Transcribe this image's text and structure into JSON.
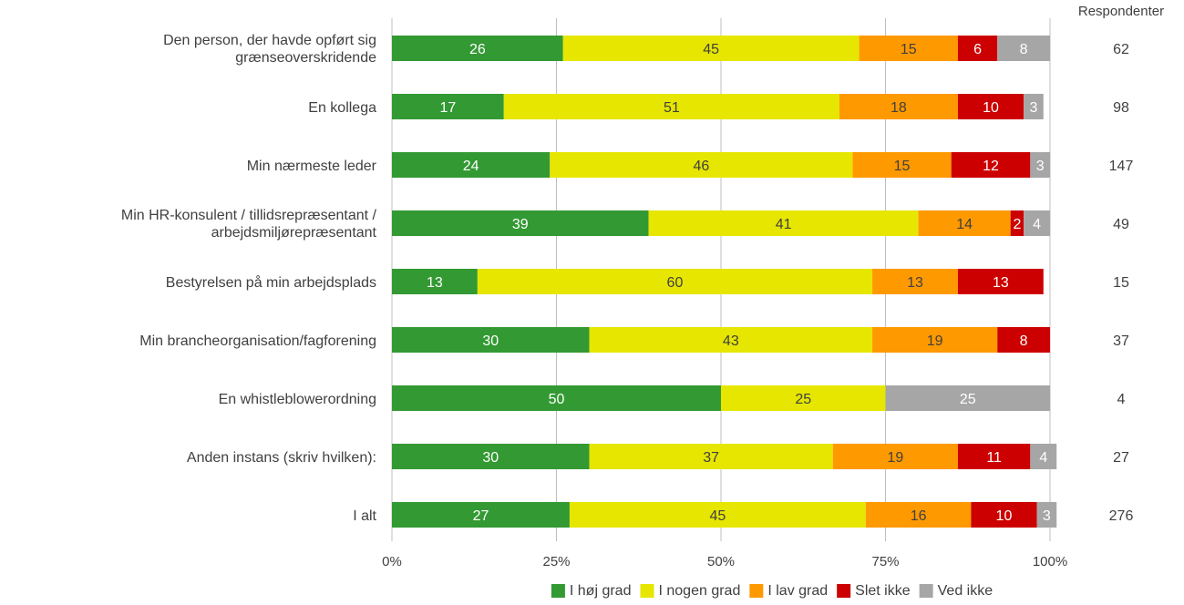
{
  "chart_data": {
    "type": "bar",
    "orientation": "horizontal",
    "stacked": "percent",
    "title": "",
    "xlabel": "",
    "ylabel": "",
    "xlim": [
      0,
      100
    ],
    "x_ticks": [
      "0%",
      "25%",
      "50%",
      "75%",
      "100%"
    ],
    "grid": true,
    "legend_position": "bottom",
    "categories": [
      [
        "Den person, der havde opført sig",
        "grænseoverskridende"
      ],
      [
        "En kollega"
      ],
      [
        "Min nærmeste leder"
      ],
      [
        "Min HR-konsulent / tillidsrepræsentant /",
        "arbejdsmiljørepræsentant"
      ],
      [
        "Bestyrelsen på min arbejdsplads"
      ],
      [
        "Min brancheorganisation/fagforening"
      ],
      [
        "En whistleblowerordning"
      ],
      [
        "Anden instans (skriv hvilken):"
      ],
      [
        "I alt"
      ]
    ],
    "series": [
      {
        "name": "I høj grad",
        "color": "#339933",
        "label_color": "#ffffff",
        "values": [
          26,
          17,
          24,
          39,
          13,
          30,
          50,
          30,
          27
        ]
      },
      {
        "name": "I nogen grad",
        "color": "#e6e600",
        "label_color": "#404040",
        "values": [
          45,
          51,
          46,
          41,
          60,
          43,
          25,
          37,
          45
        ]
      },
      {
        "name": "I lav grad",
        "color": "#ff9900",
        "label_color": "#404040",
        "values": [
          15,
          18,
          15,
          14,
          13,
          19,
          0,
          19,
          16
        ]
      },
      {
        "name": "Slet ikke",
        "color": "#cc0000",
        "label_color": "#ffffff",
        "values": [
          6,
          10,
          12,
          2,
          13,
          8,
          0,
          11,
          10
        ]
      },
      {
        "name": "Ved ikke",
        "color": "#a6a6a6",
        "label_color": "#ffffff",
        "values": [
          8,
          3,
          3,
          4,
          0,
          0,
          25,
          4,
          3
        ]
      }
    ],
    "respondents_header": "Respondenter",
    "respondents": [
      62,
      98,
      147,
      49,
      15,
      37,
      4,
      27,
      276
    ]
  }
}
